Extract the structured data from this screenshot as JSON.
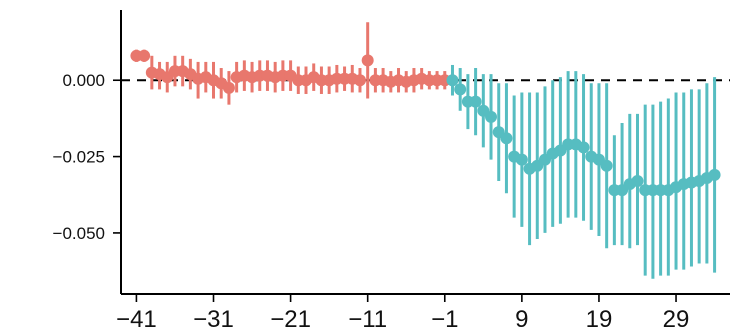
{
  "chart_data": {
    "type": "scatter",
    "title": "",
    "xlabel": "",
    "ylabel": "",
    "xlim": [
      -43,
      36
    ],
    "ylim": [
      -0.07,
      0.023
    ],
    "xticks": [
      -41,
      -31,
      -21,
      -11,
      -1,
      9,
      19,
      29
    ],
    "xtick_labels": [
      "−41",
      "−31",
      "−21",
      "−11",
      "−1",
      "9",
      "19",
      "29"
    ],
    "yticks": [
      0.0,
      -0.025,
      -0.05
    ],
    "ytick_labels": [
      "0.000",
      "−0.025",
      "−0.050"
    ],
    "reference_line": {
      "y": 0,
      "style": "dashed"
    },
    "grid": false,
    "legend": "none",
    "series": [
      {
        "color": "#E8776D",
        "points": [
          {
            "x": -41,
            "y": 0.008,
            "lo": 0.006,
            "hi": 0.01
          },
          {
            "x": -40,
            "y": 0.008,
            "lo": 0.006,
            "hi": 0.01
          },
          {
            "x": -39,
            "y": 0.0025,
            "lo": -0.003,
            "hi": 0.008
          },
          {
            "x": -38,
            "y": 0.002,
            "lo": -0.003,
            "hi": 0.006
          },
          {
            "x": -37,
            "y": 0.001,
            "lo": -0.004,
            "hi": 0.006
          },
          {
            "x": -36,
            "y": 0.003,
            "lo": -0.002,
            "hi": 0.008
          },
          {
            "x": -35,
            "y": 0.003,
            "lo": -0.002,
            "hi": 0.008
          },
          {
            "x": -34,
            "y": 0.002,
            "lo": -0.003,
            "hi": 0.007
          },
          {
            "x": -33,
            "y": 0.0005,
            "lo": -0.006,
            "hi": 0.006
          },
          {
            "x": -32,
            "y": 0.001,
            "lo": -0.004,
            "hi": 0.006
          },
          {
            "x": -31,
            "y": 0.0,
            "lo": -0.006,
            "hi": 0.006
          },
          {
            "x": -30,
            "y": -0.001,
            "lo": -0.006,
            "hi": 0.004
          },
          {
            "x": -29,
            "y": -0.0025,
            "lo": -0.008,
            "hi": 0.003
          },
          {
            "x": -28,
            "y": 0.001,
            "lo": -0.004,
            "hi": 0.006
          },
          {
            "x": -27,
            "y": 0.0015,
            "lo": -0.0035,
            "hi": 0.0065
          },
          {
            "x": -26,
            "y": 0.001,
            "lo": -0.004,
            "hi": 0.006
          },
          {
            "x": -25,
            "y": 0.0015,
            "lo": -0.0035,
            "hi": 0.0065
          },
          {
            "x": -24,
            "y": 0.0015,
            "lo": -0.0035,
            "hi": 0.0065
          },
          {
            "x": -23,
            "y": 0.001,
            "lo": -0.004,
            "hi": 0.006
          },
          {
            "x": -22,
            "y": 0.0015,
            "lo": -0.0035,
            "hi": 0.0065
          },
          {
            "x": -21,
            "y": 0.0015,
            "lo": -0.0035,
            "hi": 0.0065
          },
          {
            "x": -20,
            "y": 0.0,
            "lo": -0.0045,
            "hi": 0.0045
          },
          {
            "x": -19,
            "y": 0.0,
            "lo": -0.0045,
            "hi": 0.0045
          },
          {
            "x": -18,
            "y": 0.001,
            "lo": -0.0035,
            "hi": 0.0055
          },
          {
            "x": -17,
            "y": 0.0,
            "lo": -0.0045,
            "hi": 0.0045
          },
          {
            "x": -16,
            "y": 0.0,
            "lo": -0.0045,
            "hi": 0.0045
          },
          {
            "x": -15,
            "y": 0.0005,
            "lo": -0.004,
            "hi": 0.005
          },
          {
            "x": -14,
            "y": 0.0005,
            "lo": -0.0035,
            "hi": 0.0045
          },
          {
            "x": -13,
            "y": 0.0005,
            "lo": -0.004,
            "hi": 0.005
          },
          {
            "x": -12,
            "y": 0.0,
            "lo": -0.004,
            "hi": 0.004
          },
          {
            "x": -11,
            "y": 0.0065,
            "lo": -0.006,
            "hi": 0.019
          },
          {
            "x": -10,
            "y": 0.0,
            "lo": -0.004,
            "hi": 0.004
          },
          {
            "x": -9,
            "y": 0.0,
            "lo": -0.004,
            "hi": 0.004
          },
          {
            "x": -8,
            "y": -0.0005,
            "lo": -0.004,
            "hi": 0.003
          },
          {
            "x": -7,
            "y": 0.0,
            "lo": -0.004,
            "hi": 0.004
          },
          {
            "x": -6,
            "y": -0.0005,
            "lo": -0.004,
            "hi": 0.003
          },
          {
            "x": -5,
            "y": 0.0,
            "lo": -0.004,
            "hi": 0.004
          },
          {
            "x": -4,
            "y": 0.0005,
            "lo": -0.003,
            "hi": 0.004
          },
          {
            "x": -3,
            "y": 0.0,
            "lo": -0.003,
            "hi": 0.003
          },
          {
            "x": -2,
            "y": 0.0,
            "lo": -0.003,
            "hi": 0.003
          },
          {
            "x": -1,
            "y": 0.0,
            "lo": -0.003,
            "hi": 0.003
          }
        ]
      },
      {
        "color": "#56BDC1",
        "points": [
          {
            "x": 0,
            "y": 0.0,
            "lo": -0.005,
            "hi": 0.005
          },
          {
            "x": 1,
            "y": -0.003,
            "lo": -0.01,
            "hi": 0.004
          },
          {
            "x": 2,
            "y": -0.007,
            "lo": -0.016,
            "hi": 0.002
          },
          {
            "x": 3,
            "y": -0.007,
            "lo": -0.018,
            "hi": 0.004
          },
          {
            "x": 4,
            "y": -0.01,
            "lo": -0.022,
            "hi": 0.002
          },
          {
            "x": 5,
            "y": -0.012,
            "lo": -0.026,
            "hi": 0.002
          },
          {
            "x": 6,
            "y": -0.017,
            "lo": -0.033,
            "hi": -0.001
          },
          {
            "x": 7,
            "y": -0.019,
            "lo": -0.037,
            "hi": -0.001
          },
          {
            "x": 8,
            "y": -0.025,
            "lo": -0.045,
            "hi": -0.005
          },
          {
            "x": 9,
            "y": -0.026,
            "lo": -0.048,
            "hi": -0.004
          },
          {
            "x": 10,
            "y": -0.029,
            "lo": -0.054,
            "hi": -0.004
          },
          {
            "x": 11,
            "y": -0.028,
            "lo": -0.052,
            "hi": -0.004
          },
          {
            "x": 12,
            "y": -0.026,
            "lo": -0.05,
            "hi": -0.002
          },
          {
            "x": 13,
            "y": -0.024,
            "lo": -0.048,
            "hi": 0.0
          },
          {
            "x": 14,
            "y": -0.023,
            "lo": -0.047,
            "hi": 0.001
          },
          {
            "x": 15,
            "y": -0.021,
            "lo": -0.045,
            "hi": 0.003
          },
          {
            "x": 16,
            "y": -0.021,
            "lo": -0.045,
            "hi": 0.003
          },
          {
            "x": 17,
            "y": -0.022,
            "lo": -0.046,
            "hi": 0.002
          },
          {
            "x": 18,
            "y": -0.025,
            "lo": -0.049,
            "hi": -0.001
          },
          {
            "x": 19,
            "y": -0.026,
            "lo": -0.051,
            "hi": -0.001
          },
          {
            "x": 20,
            "y": -0.028,
            "lo": -0.055,
            "hi": -0.001
          },
          {
            "x": 21,
            "y": -0.036,
            "lo": -0.054,
            "hi": -0.018
          },
          {
            "x": 22,
            "y": -0.036,
            "lo": -0.054,
            "hi": -0.014
          },
          {
            "x": 23,
            "y": -0.034,
            "lo": -0.055,
            "hi": -0.011
          },
          {
            "x": 24,
            "y": -0.033,
            "lo": -0.054,
            "hi": -0.011
          },
          {
            "x": 25,
            "y": -0.036,
            "lo": -0.064,
            "hi": -0.008
          },
          {
            "x": 26,
            "y": -0.036,
            "lo": -0.065,
            "hi": -0.008
          },
          {
            "x": 27,
            "y": -0.036,
            "lo": -0.064,
            "hi": -0.007
          },
          {
            "x": 28,
            "y": -0.036,
            "lo": -0.064,
            "hi": -0.006
          },
          {
            "x": 29,
            "y": -0.035,
            "lo": -0.062,
            "hi": -0.004
          },
          {
            "x": 30,
            "y": -0.034,
            "lo": -0.062,
            "hi": -0.004
          },
          {
            "x": 31,
            "y": -0.0335,
            "lo": -0.061,
            "hi": -0.003
          },
          {
            "x": 32,
            "y": -0.033,
            "lo": -0.06,
            "hi": -0.003
          },
          {
            "x": 33,
            "y": -0.032,
            "lo": -0.06,
            "hi": -0.001
          },
          {
            "x": 34,
            "y": -0.031,
            "lo": -0.063,
            "hi": 0.001
          }
        ]
      }
    ]
  }
}
